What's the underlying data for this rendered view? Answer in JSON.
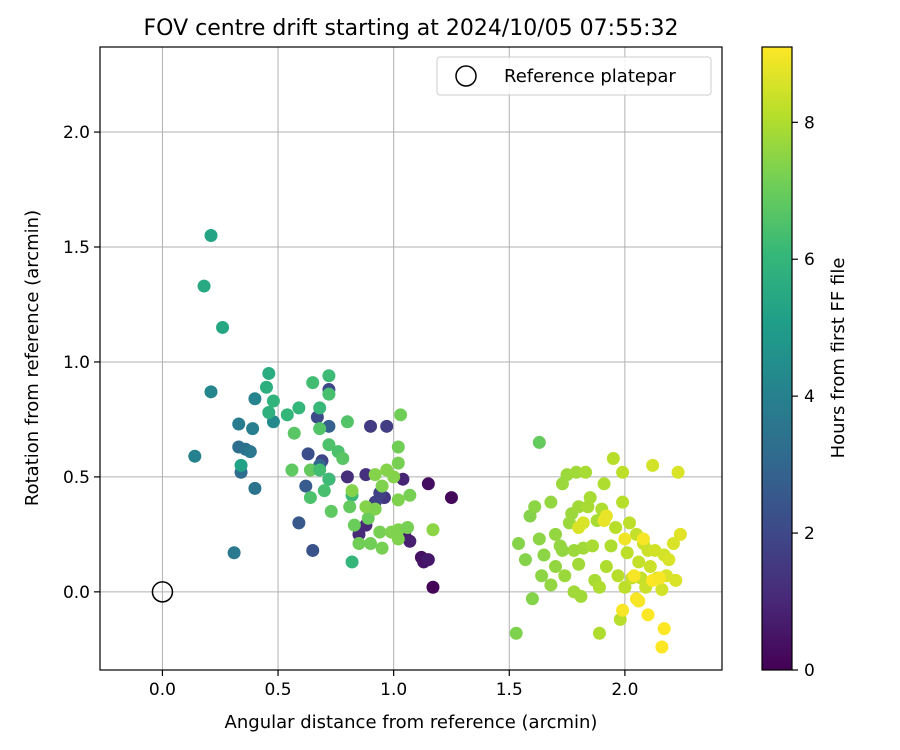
{
  "chart_data": {
    "type": "scatter",
    "title": "FOV centre drift starting at 2024/10/05 07:55:32",
    "xlabel": "Angular distance from reference (arcmin)",
    "ylabel": "Rotation from reference (arcmin)",
    "xlim": [
      -0.27,
      2.42
    ],
    "ylim": [
      -0.34,
      2.37
    ],
    "x_ticks": [
      0.0,
      0.5,
      1.0,
      1.5,
      2.0
    ],
    "x_tick_labels": [
      "0.0",
      "0.5",
      "1.0",
      "1.5",
      "2.0"
    ],
    "y_ticks": [
      0.0,
      0.5,
      1.0,
      1.5,
      2.0
    ],
    "y_tick_labels": [
      "0.0",
      "0.5",
      "1.0",
      "1.5",
      "2.0"
    ],
    "grid": true,
    "legend": {
      "placement": "top-right",
      "entries": [
        {
          "label": "Reference platepar",
          "marker": "open-circle",
          "color": "#000000"
        }
      ]
    },
    "reference_point": {
      "x": 0.0,
      "y": 0.0
    },
    "colorbar": {
      "label": "Hours from first FF file",
      "range": [
        0,
        9.1
      ],
      "ticks": [
        0,
        2,
        4,
        6,
        8
      ],
      "tick_labels": [
        "0",
        "2",
        "4",
        "6",
        "8"
      ],
      "colormap": "viridis",
      "stops": [
        "#440154",
        "#482878",
        "#3e4989",
        "#31688e",
        "#26828e",
        "#1f9e89",
        "#35b779",
        "#6ece58",
        "#b5de2b",
        "#fde725"
      ]
    },
    "series": {
      "columns": [
        "x",
        "y",
        "hours"
      ],
      "points": [
        [
          1.17,
          0.02,
          0.1
        ],
        [
          1.25,
          0.41,
          0.2
        ],
        [
          1.15,
          0.47,
          0.3
        ],
        [
          1.12,
          0.15,
          0.4
        ],
        [
          1.13,
          0.13,
          0.5
        ],
        [
          1.15,
          0.14,
          0.6
        ],
        [
          1.05,
          0.24,
          0.7
        ],
        [
          1.07,
          0.22,
          0.8
        ],
        [
          1.04,
          0.49,
          0.9
        ],
        [
          0.88,
          0.29,
          1.0
        ],
        [
          0.85,
          0.25,
          1.1
        ],
        [
          0.8,
          0.5,
          1.2
        ],
        [
          0.88,
          0.51,
          1.3
        ],
        [
          0.72,
          0.49,
          1.4
        ],
        [
          0.96,
          0.41,
          1.5
        ],
        [
          0.9,
          0.72,
          1.6
        ],
        [
          0.97,
          0.72,
          1.7
        ],
        [
          0.92,
          0.39,
          1.8
        ],
        [
          0.94,
          0.43,
          1.8
        ],
        [
          0.69,
          0.57,
          1.9
        ],
        [
          0.72,
          0.88,
          2.0
        ],
        [
          0.67,
          0.76,
          2.1
        ],
        [
          0.63,
          0.6,
          2.2
        ],
        [
          0.65,
          0.18,
          2.3
        ],
        [
          0.59,
          0.3,
          2.5
        ],
        [
          0.62,
          0.46,
          2.6
        ],
        [
          0.72,
          0.72,
          2.8
        ],
        [
          0.68,
          0.55,
          3.0
        ],
        [
          0.34,
          0.52,
          3.2
        ],
        [
          0.33,
          0.63,
          3.3
        ],
        [
          0.36,
          0.62,
          3.4
        ],
        [
          0.4,
          0.45,
          3.5
        ],
        [
          0.38,
          0.61,
          3.6
        ],
        [
          0.31,
          0.17,
          3.7
        ],
        [
          0.33,
          0.73,
          3.8
        ],
        [
          0.39,
          0.71,
          3.9
        ],
        [
          0.14,
          0.59,
          4.0
        ],
        [
          0.4,
          0.84,
          4.1
        ],
        [
          0.21,
          0.87,
          4.2
        ],
        [
          0.48,
          0.74,
          4.3
        ],
        [
          0.34,
          0.55,
          5.2
        ],
        [
          0.21,
          1.55,
          5.3
        ],
        [
          0.26,
          1.15,
          5.4
        ],
        [
          0.18,
          1.33,
          5.5
        ],
        [
          0.46,
          0.95,
          5.6
        ],
        [
          0.45,
          0.89,
          5.7
        ],
        [
          0.46,
          0.78,
          5.8
        ],
        [
          0.48,
          0.83,
          5.9
        ],
        [
          0.59,
          0.8,
          6.0
        ],
        [
          0.54,
          0.77,
          6.0
        ],
        [
          0.68,
          0.8,
          6.1
        ],
        [
          0.72,
          0.94,
          6.2
        ],
        [
          0.65,
          0.91,
          6.3
        ],
        [
          0.72,
          0.86,
          6.4
        ],
        [
          0.72,
          0.64,
          6.5
        ],
        [
          0.76,
          0.61,
          6.5
        ],
        [
          0.68,
          0.71,
          6.6
        ],
        [
          0.57,
          0.69,
          6.7
        ],
        [
          0.56,
          0.53,
          6.8
        ],
        [
          0.64,
          0.53,
          6.9
        ],
        [
          0.82,
          0.13,
          6.0
        ],
        [
          0.82,
          0.42,
          6.1
        ],
        [
          0.72,
          0.49,
          6.2
        ],
        [
          0.68,
          0.53,
          6.3
        ],
        [
          0.7,
          0.44,
          6.4
        ],
        [
          0.64,
          0.41,
          6.5
        ],
        [
          0.8,
          0.74,
          6.6
        ],
        [
          0.78,
          0.58,
          6.7
        ],
        [
          0.73,
          0.35,
          6.8
        ],
        [
          0.81,
          0.37,
          6.9
        ],
        [
          0.89,
          0.32,
          7.0
        ],
        [
          0.83,
          0.29,
          7.0
        ],
        [
          0.85,
          0.21,
          7.1
        ],
        [
          0.9,
          0.21,
          7.1
        ],
        [
          0.95,
          0.19,
          7.2
        ],
        [
          0.94,
          0.26,
          7.2
        ],
        [
          0.99,
          0.26,
          7.3
        ],
        [
          1.02,
          0.27,
          7.3
        ],
        [
          1.06,
          0.28,
          7.2
        ],
        [
          1.02,
          0.23,
          7.3
        ],
        [
          1.02,
          0.56,
          7.2
        ],
        [
          1.03,
          0.77,
          7.1
        ],
        [
          1.02,
          0.63,
          7.1
        ],
        [
          1.07,
          0.42,
          7.2
        ],
        [
          1.02,
          0.4,
          7.3
        ],
        [
          0.95,
          0.46,
          7.3
        ],
        [
          0.92,
          0.51,
          7.4
        ],
        [
          0.88,
          0.37,
          7.4
        ],
        [
          0.92,
          0.36,
          7.3
        ],
        [
          0.97,
          0.53,
          7.4
        ],
        [
          1.0,
          0.5,
          7.4
        ],
        [
          1.17,
          0.27,
          7.5
        ],
        [
          0.82,
          0.44,
          7.4
        ],
        [
          1.63,
          0.65,
          6.9
        ],
        [
          1.53,
          -0.18,
          7.3
        ],
        [
          1.54,
          0.21,
          7.4
        ],
        [
          1.57,
          0.14,
          7.4
        ],
        [
          1.59,
          0.33,
          7.4
        ],
        [
          1.6,
          -0.03,
          7.4
        ],
        [
          1.61,
          0.37,
          7.5
        ],
        [
          1.63,
          0.23,
          7.5
        ],
        [
          1.64,
          0.07,
          7.5
        ],
        [
          1.65,
          0.16,
          7.5
        ],
        [
          1.68,
          0.03,
          7.6
        ],
        [
          1.68,
          0.39,
          7.6
        ],
        [
          1.7,
          0.11,
          7.6
        ],
        [
          1.7,
          0.25,
          7.6
        ],
        [
          1.72,
          0.2,
          7.6
        ],
        [
          1.73,
          0.18,
          7.6
        ],
        [
          1.73,
          0.47,
          7.7
        ],
        [
          1.74,
          0.07,
          7.7
        ],
        [
          1.75,
          0.51,
          7.7
        ],
        [
          1.76,
          0.3,
          7.7
        ],
        [
          1.77,
          0.34,
          7.7
        ],
        [
          1.78,
          0.18,
          7.7
        ],
        [
          1.78,
          0.0,
          7.8
        ],
        [
          1.79,
          0.52,
          7.8
        ],
        [
          1.8,
          0.37,
          7.8
        ],
        [
          1.8,
          0.12,
          7.8
        ],
        [
          1.81,
          -0.02,
          7.8
        ],
        [
          1.82,
          0.19,
          7.8
        ],
        [
          1.83,
          0.52,
          7.9
        ],
        [
          1.84,
          0.37,
          7.9
        ],
        [
          1.85,
          0.41,
          7.9
        ],
        [
          1.86,
          0.2,
          7.9
        ],
        [
          1.87,
          0.05,
          7.9
        ],
        [
          1.88,
          0.31,
          7.9
        ],
        [
          1.89,
          0.02,
          8.0
        ],
        [
          1.89,
          -0.18,
          8.0
        ],
        [
          1.9,
          0.36,
          8.0
        ],
        [
          1.91,
          0.47,
          8.0
        ],
        [
          1.92,
          0.11,
          8.0
        ],
        [
          1.94,
          0.2,
          8.0
        ],
        [
          1.95,
          0.58,
          8.1
        ],
        [
          1.96,
          0.28,
          8.1
        ],
        [
          1.97,
          0.07,
          8.1
        ],
        [
          1.98,
          -0.12,
          8.1
        ],
        [
          1.99,
          0.39,
          8.1
        ],
        [
          1.99,
          0.52,
          8.2
        ],
        [
          2.0,
          0.02,
          8.2
        ],
        [
          2.01,
          0.17,
          8.2
        ],
        [
          2.02,
          0.3,
          8.2
        ],
        [
          2.03,
          0.06,
          8.3
        ],
        [
          2.05,
          0.25,
          8.3
        ],
        [
          2.06,
          0.13,
          8.3
        ],
        [
          2.07,
          0.06,
          8.3
        ],
        [
          2.08,
          0.21,
          8.4
        ],
        [
          2.09,
          0.02,
          8.4
        ],
        [
          2.1,
          0.18,
          8.4
        ],
        [
          2.11,
          0.11,
          8.4
        ],
        [
          2.12,
          0.55,
          8.5
        ],
        [
          2.13,
          0.18,
          8.5
        ],
        [
          2.14,
          0.06,
          8.5
        ],
        [
          2.16,
          0.01,
          8.5
        ],
        [
          2.17,
          0.16,
          8.5
        ],
        [
          2.18,
          0.07,
          8.6
        ],
        [
          2.19,
          0.14,
          8.6
        ],
        [
          2.21,
          0.21,
          8.6
        ],
        [
          2.22,
          0.05,
          8.6
        ],
        [
          2.23,
          0.52,
          8.6
        ],
        [
          2.24,
          0.25,
          8.7
        ],
        [
          1.8,
          0.28,
          8.6
        ],
        [
          1.82,
          0.3,
          8.6
        ],
        [
          1.91,
          0.31,
          8.8
        ],
        [
          1.92,
          0.33,
          8.8
        ],
        [
          1.99,
          -0.08,
          9.0
        ],
        [
          2.0,
          0.23,
          8.9
        ],
        [
          2.04,
          0.07,
          9.0
        ],
        [
          2.05,
          -0.03,
          9.0
        ],
        [
          2.06,
          -0.04,
          9.0
        ],
        [
          2.08,
          0.23,
          9.0
        ],
        [
          2.1,
          -0.1,
          9.1
        ],
        [
          2.12,
          0.05,
          9.1
        ],
        [
          2.16,
          -0.24,
          9.1
        ],
        [
          2.17,
          -0.16,
          9.1
        ],
        [
          2.15,
          0.06,
          9.0
        ]
      ]
    }
  }
}
